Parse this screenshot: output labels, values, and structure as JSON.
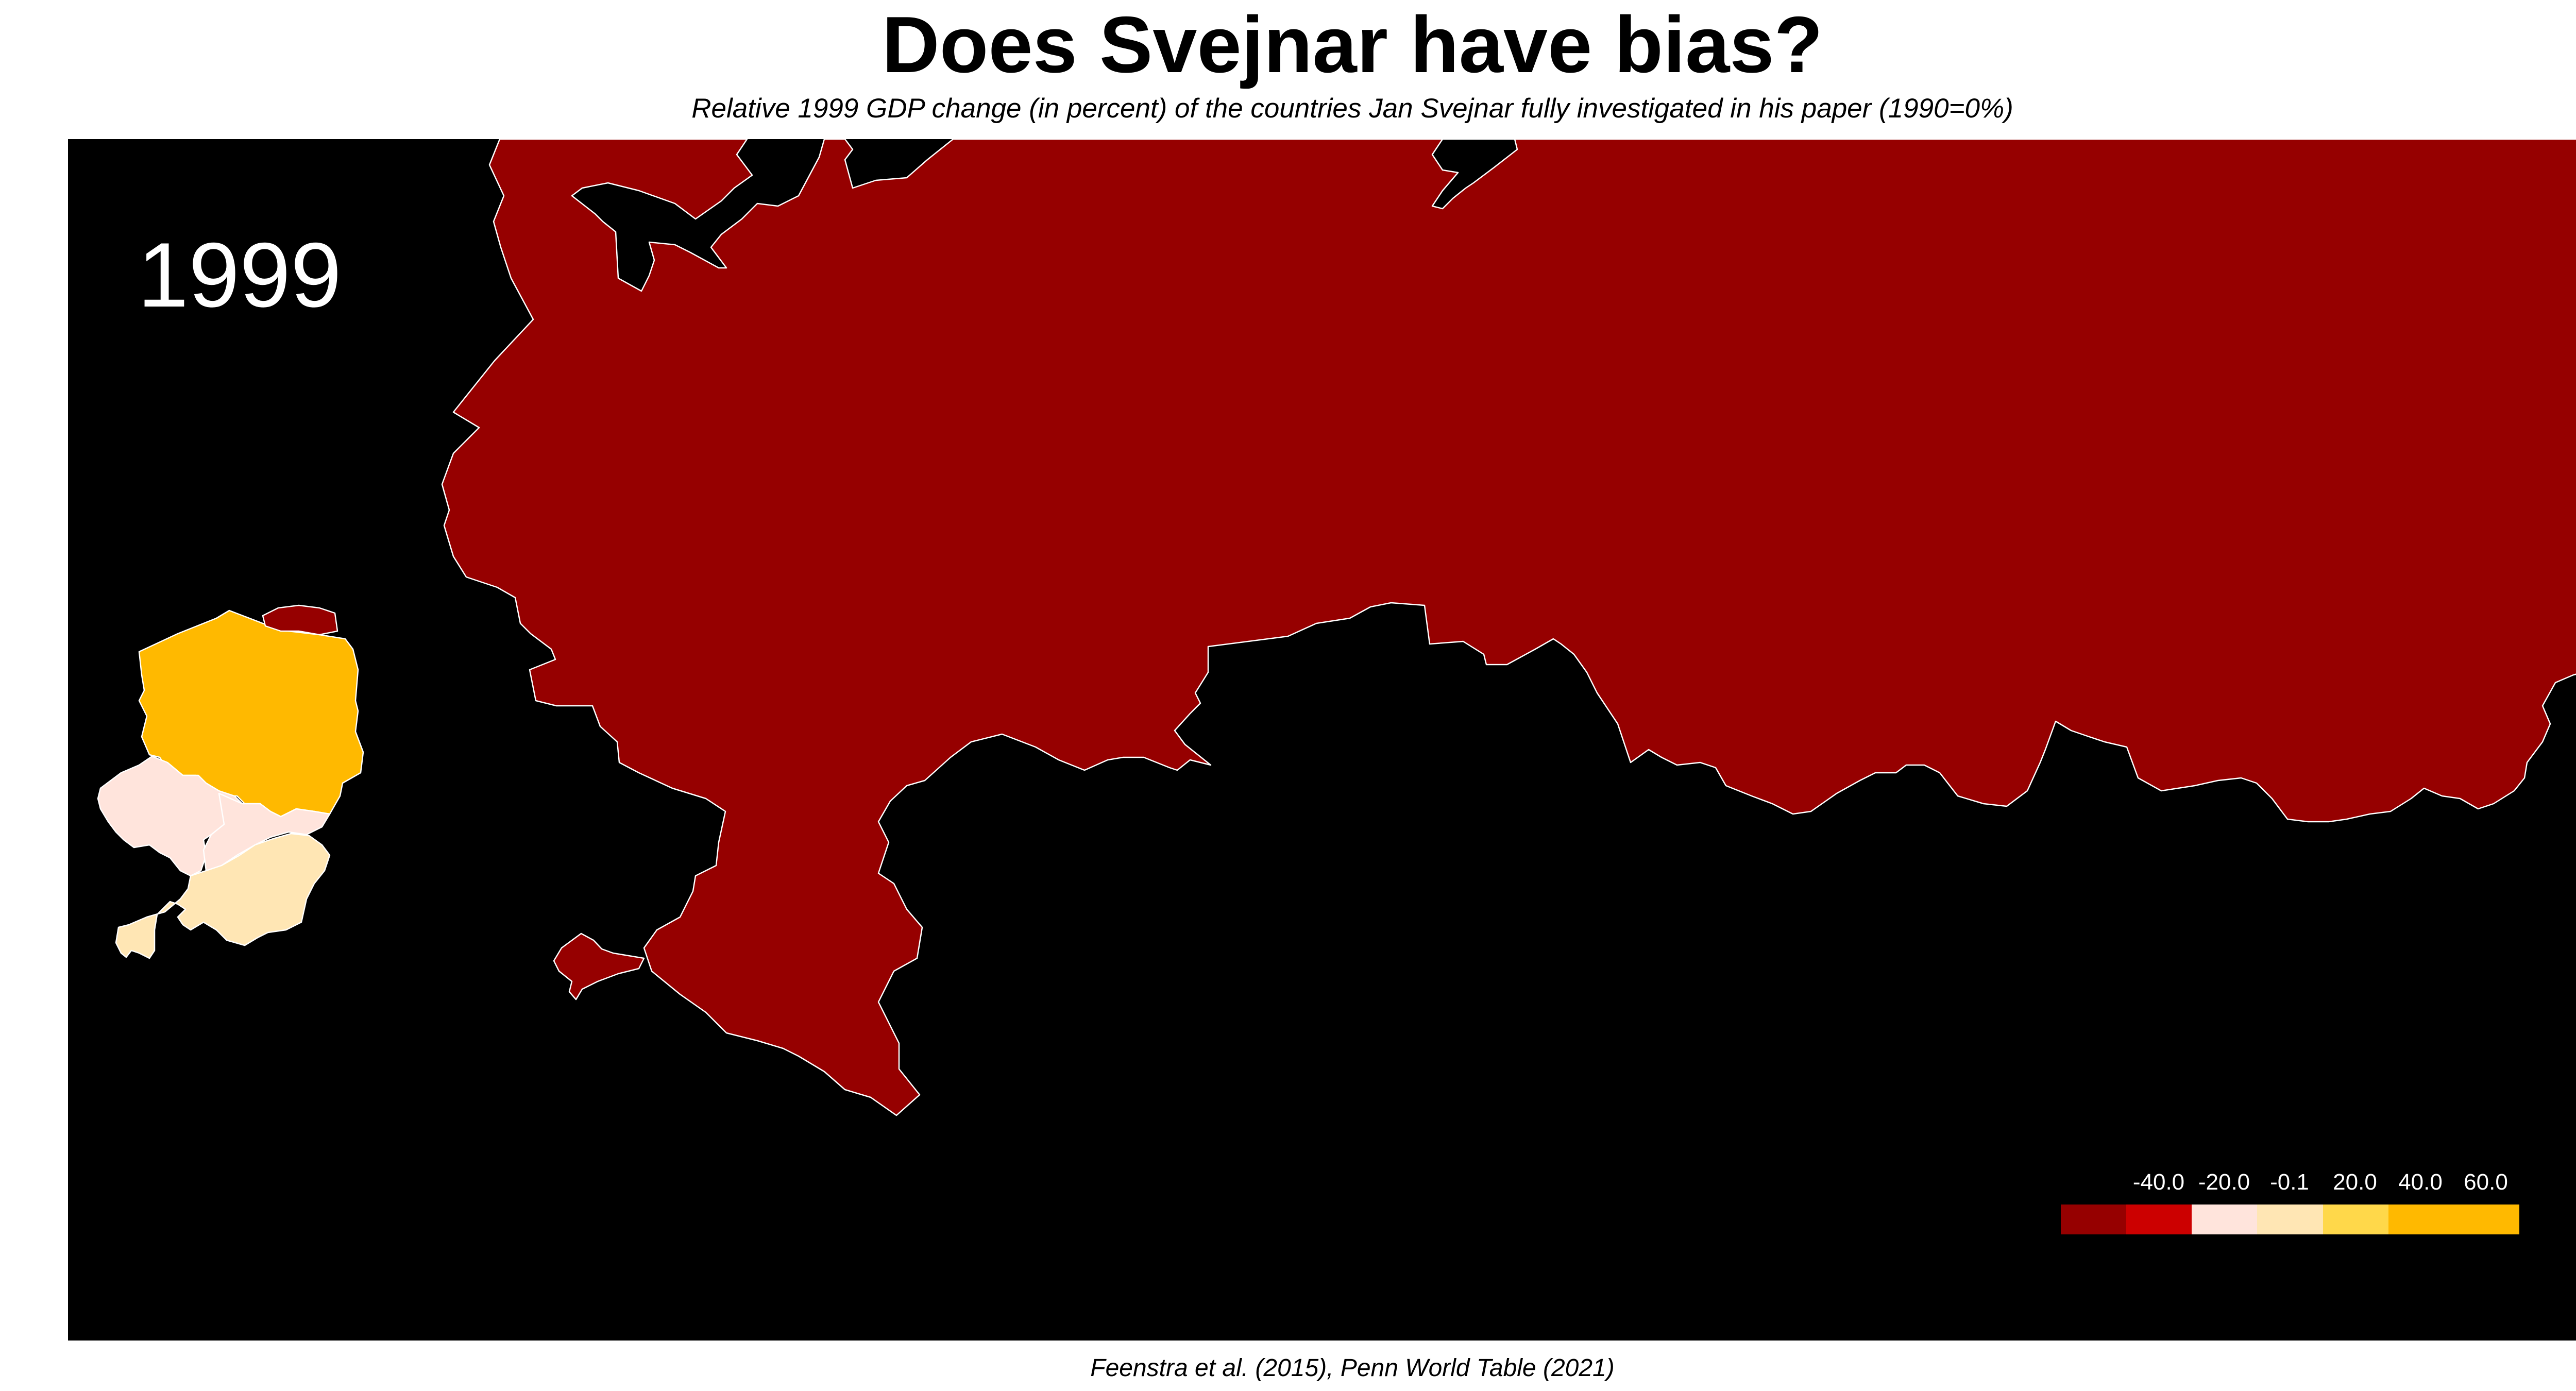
{
  "title": "Does Svejnar have bias?",
  "subtitle": "Relative 1999 GDP change (in percent) of the countries Jan Svejnar fully investigated in his paper (1990=0%)",
  "caption": "Feenstra et al. (2015), Penn World Table (2021)",
  "year_label": "1999",
  "colors": {
    "background": "#000000",
    "border": "#ffffff",
    "russia_bin": "#960000",
    "poland_bin": "#FFB900",
    "czech_slovakia_bin": "#FFE4DC",
    "hungary_bin": "#FFE6B4"
  },
  "legend": {
    "labels": [
      "-40.0",
      "-20.0",
      "-0.1",
      "20.0",
      "40.0",
      "60.0"
    ],
    "colors": [
      "#960000",
      "#CC0000",
      "#FFE4DC",
      "#FFE6B4",
      "#FFD84A",
      "#FFB900",
      "#FFB900"
    ]
  },
  "regions": [
    {
      "name": "Russia",
      "bin_color": "#960000"
    },
    {
      "name": "Poland",
      "bin_color": "#FFB900"
    },
    {
      "name": "Czech Republic",
      "bin_color": "#FFE4DC"
    },
    {
      "name": "Slovakia",
      "bin_color": "#FFE4DC"
    },
    {
      "name": "Hungary",
      "bin_color": "#FFE6B4"
    },
    {
      "name": "Kaliningrad",
      "bin_color": "#960000"
    }
  ]
}
